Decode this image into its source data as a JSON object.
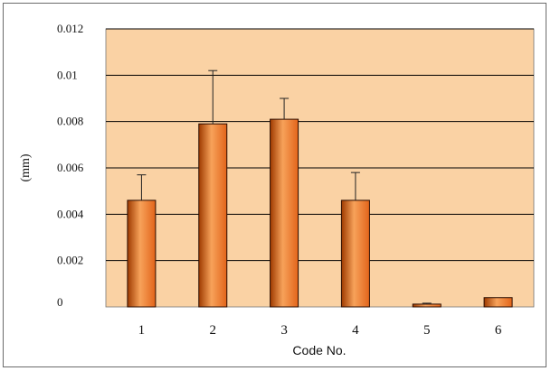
{
  "chart_data": {
    "type": "bar",
    "title": "",
    "xlabel": "Code No.",
    "ylabel": "(mm)",
    "categories": [
      "1",
      "2",
      "3",
      "4",
      "5",
      "6"
    ],
    "series": [
      {
        "values": [
          0.0046,
          0.0079,
          0.0081,
          0.0046,
          0.00012,
          0.0004
        ],
        "error_plus": [
          0.0011,
          0.0023,
          0.0009,
          0.0012,
          4e-05,
          0.0
        ]
      }
    ],
    "ylim": [
      0,
      0.012
    ],
    "yticks": [
      "0",
      "0.002",
      "0.004",
      "0.006",
      "0.008",
      "0.01",
      "0.012"
    ],
    "grid": true,
    "legend": "none",
    "colors": {
      "plot_background": "#FAD2A4",
      "bar_fill_dark": "#9E3A00",
      "bar_fill_mid": "#E2641A",
      "bar_fill_light": "#F7A25A",
      "gridline": "#000000"
    }
  }
}
